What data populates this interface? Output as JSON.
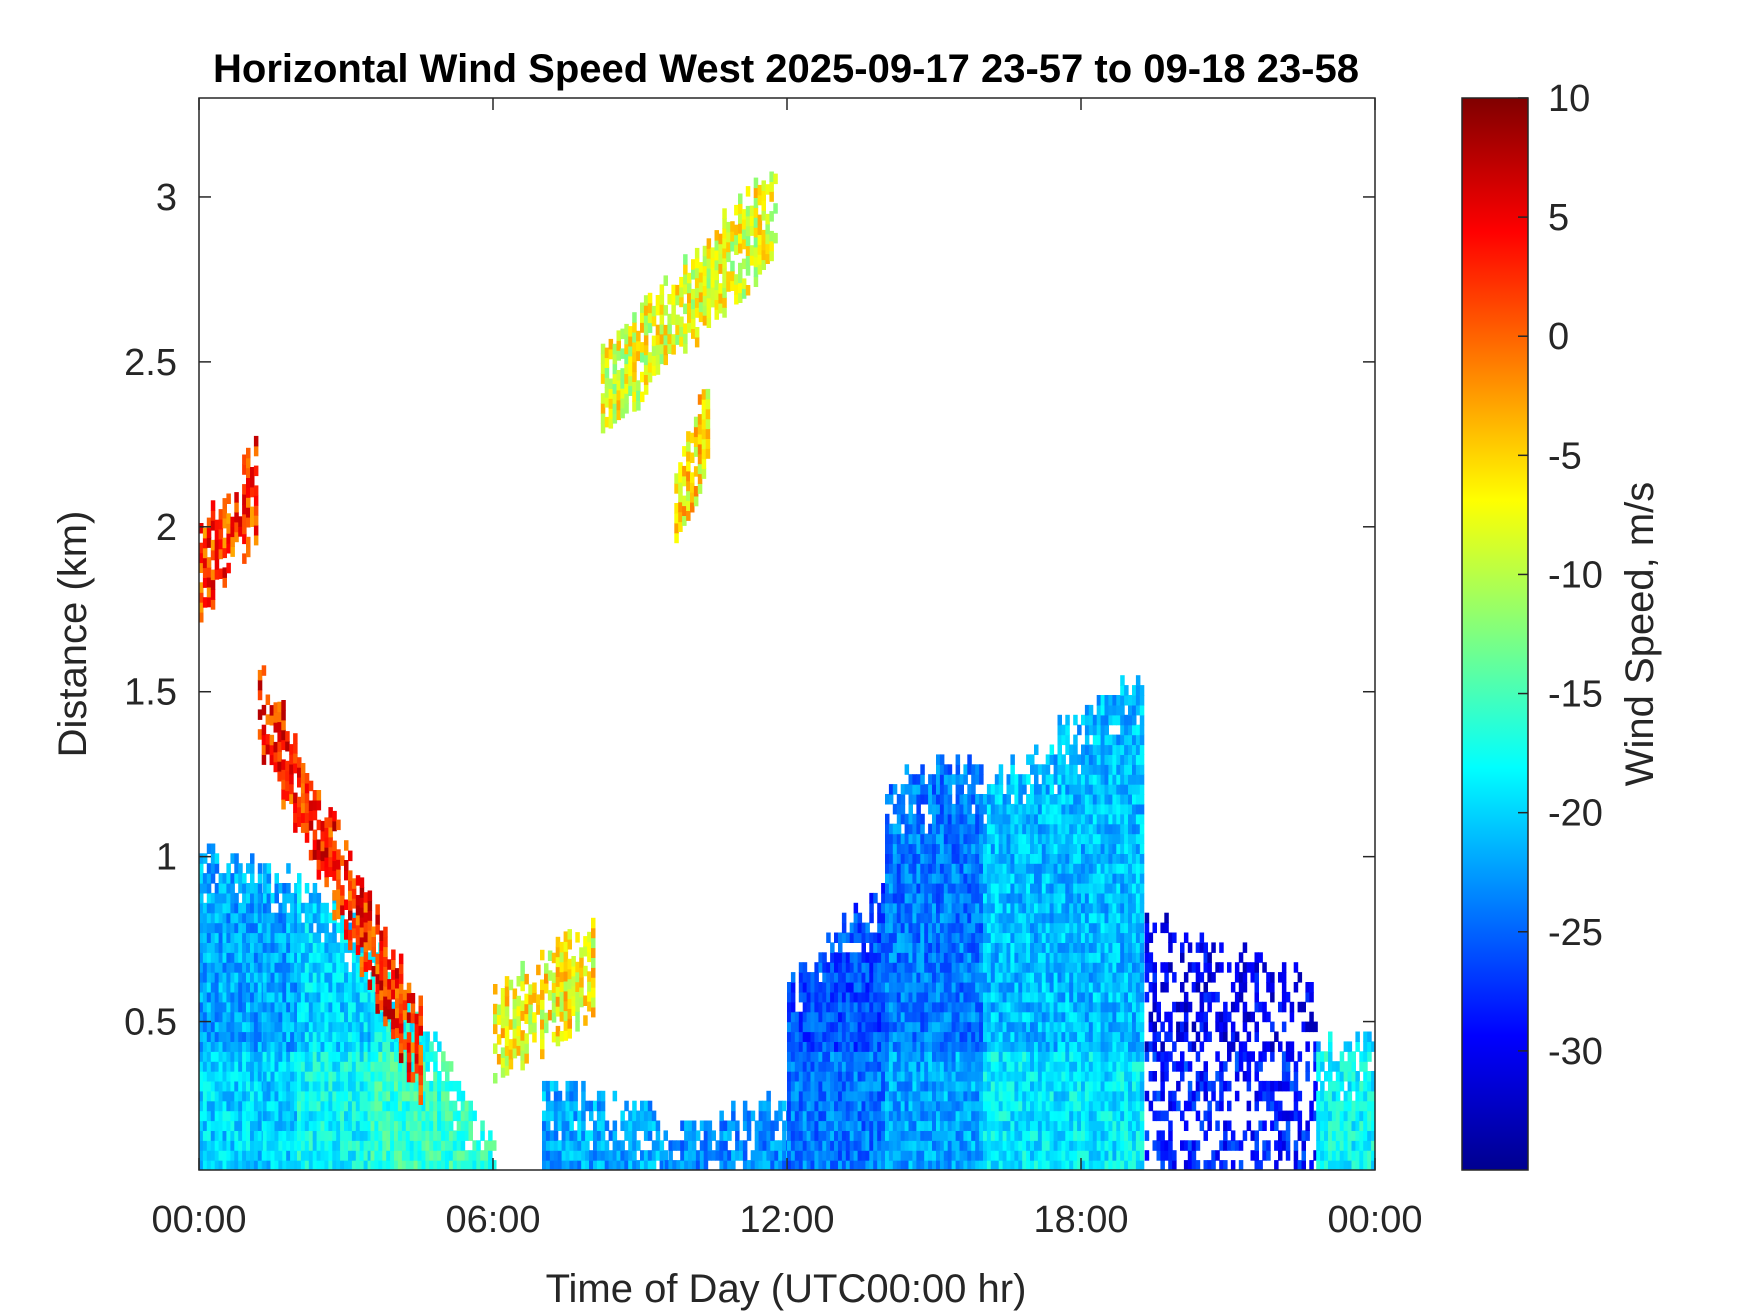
{
  "chart_data": {
    "type": "heatmap",
    "title": "Horizontal Wind Speed West 2025-09-17 23-57 to 09-18 23-58",
    "xlabel": "Time of Day (UTC00:00 hr)",
    "ylabel": "Distance (km)",
    "x_ticks": [
      "00:00",
      "06:00",
      "12:00",
      "18:00",
      "00:00"
    ],
    "x_tick_hours": [
      0,
      6,
      12,
      18,
      24
    ],
    "xlim": [
      0,
      24
    ],
    "y_ticks": [
      "0.5",
      "1",
      "1.5",
      "2",
      "2.5",
      "3"
    ],
    "y_tick_values": [
      0.5,
      1,
      1.5,
      2,
      2.5,
      3
    ],
    "ylim": [
      0.05,
      3.3
    ],
    "colorbar": {
      "label": "Wind Speed, m/s",
      "ticks": [
        "10",
        "5",
        "0",
        "-5",
        "-10",
        "-15",
        "-20",
        "-25",
        "-30"
      ],
      "tick_values": [
        10,
        5,
        0,
        -5,
        -10,
        -15,
        -20,
        -25,
        -30
      ],
      "range": [
        -35,
        10
      ],
      "colormap": "jet"
    },
    "grid": false,
    "regions": [
      {
        "x": [
          0,
          1.3
        ],
        "y_top": [
          1.0,
          0.95
        ],
        "value": -22
      },
      {
        "x": [
          1.3,
          2.0
        ],
        "y_top": [
          0.95,
          0.9
        ],
        "value": -22
      },
      {
        "x": [
          2.0,
          3.5
        ],
        "y_top": [
          0.9,
          0.75
        ],
        "value": -20
      },
      {
        "x": [
          3.5,
          6.0
        ],
        "y_top": [
          0.75,
          0.1
        ],
        "value": -18
      },
      {
        "x": [
          7.0,
          9.5
        ],
        "y_top": [
          0.3,
          0.2
        ],
        "value": -24
      },
      {
        "x": [
          9.5,
          12.0
        ],
        "y_top": [
          0.15,
          0.25
        ],
        "value": -25
      },
      {
        "x": [
          12.0,
          14.0
        ],
        "y_top": [
          0.6,
          0.9
        ],
        "value": -26
      },
      {
        "x": [
          14.0,
          16.0
        ],
        "y_top": [
          1.2,
          1.3
        ],
        "value": -24
      },
      {
        "x": [
          16.0,
          19.2
        ],
        "y_top": [
          1.2,
          1.55
        ],
        "value": -21
      },
      {
        "x": [
          19.3,
          22.8
        ],
        "y_top": [
          0.8,
          0.6
        ],
        "value": -30
      },
      {
        "x": [
          22.8,
          24.0
        ],
        "y_top": [
          0.4,
          0.45
        ],
        "value": -20
      }
    ],
    "features": [
      {
        "desc": "layer near 2 km",
        "x": [
          0,
          1.2
        ],
        "y": [
          1.85,
          2.1
        ],
        "value": 2
      },
      {
        "desc": "descending shear band",
        "x": [
          1.2,
          4.6
        ],
        "y": [
          1.45,
          0.4
        ],
        "value": 3
      },
      {
        "desc": "cells near 0.55 km",
        "x": [
          6.0,
          8.1
        ],
        "y": [
          0.45,
          0.65
        ],
        "value": -7
      },
      {
        "desc": "upper cluster",
        "x": [
          8.2,
          11.8
        ],
        "y": [
          2.4,
          2.95
        ],
        "value": -8
      },
      {
        "desc": "isolated cell near 2.2 km",
        "x": [
          9.7,
          10.4
        ],
        "y": [
          2.05,
          2.3
        ],
        "value": -6
      }
    ]
  }
}
